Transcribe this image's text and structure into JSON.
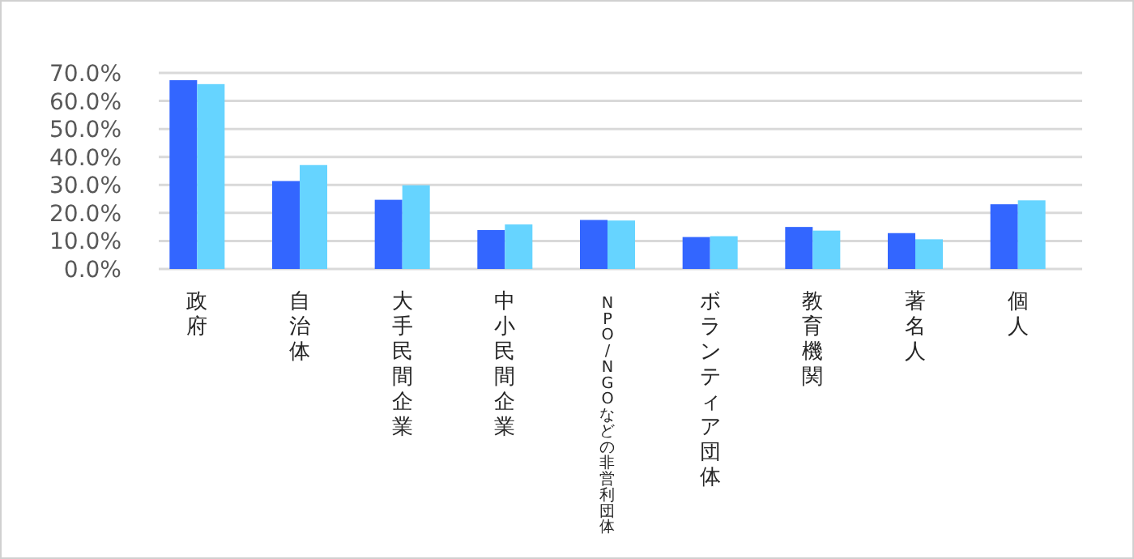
{
  "chart_data": {
    "type": "bar",
    "categories": [
      "政府",
      "自治体",
      "大手民間企業",
      "中小民間企業",
      "NPO/NGOなどの非営利団体",
      "ボランティア団体",
      "教育機関",
      "著名人",
      "個人"
    ],
    "series": [
      {
        "color": "#3366ff",
        "values": [
          67.4,
          31.4,
          24.7,
          13.9,
          17.5,
          11.4,
          15.0,
          12.8,
          23.1
        ]
      },
      {
        "color": "#66d4ff",
        "values": [
          66.0,
          37.1,
          29.9,
          15.9,
          17.3,
          11.7,
          13.7,
          10.6,
          24.5
        ]
      }
    ],
    "ylim": [
      0,
      70
    ],
    "yticks": [
      {
        "value": 0,
        "label": "0.0%"
      },
      {
        "value": 10,
        "label": "10.0%"
      },
      {
        "value": 20,
        "label": "20.0%"
      },
      {
        "value": 30,
        "label": "30.0%"
      },
      {
        "value": 40,
        "label": "40.0%"
      },
      {
        "value": 50,
        "label": "50.0%"
      },
      {
        "value": 60,
        "label": "60.0%"
      },
      {
        "value": 70,
        "label": "70.0%"
      }
    ],
    "grid": "y",
    "legend": false
  }
}
